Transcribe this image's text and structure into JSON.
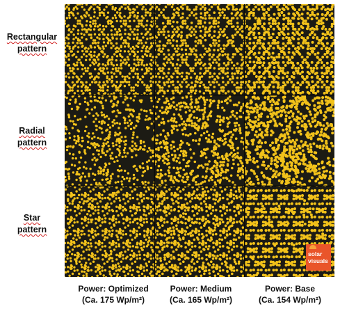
{
  "row_labels": [
    {
      "line1": "Rectangular",
      "line2": "pattern"
    },
    {
      "line1": "Radial",
      "line2": "pattern"
    },
    {
      "line1": "Star",
      "line2": "pattern"
    }
  ],
  "column_labels": [
    {
      "line1": "Power: Optimized",
      "line2": "(Ca. 175 Wp/m²)"
    },
    {
      "line1": "Power: Medium",
      "line2": "(Ca. 165 Wp/m²)"
    },
    {
      "line1": "Power: Base",
      "line2": "(Ca. 154 Wp/m²)"
    }
  ],
  "logo": {
    "text_line1": "solar",
    "text_line2": "visuals",
    "color": "#e9552a"
  },
  "colors": {
    "cell_background": "#1c1b14",
    "dot": "#f2c21a",
    "divider": "#0b0b08"
  }
}
